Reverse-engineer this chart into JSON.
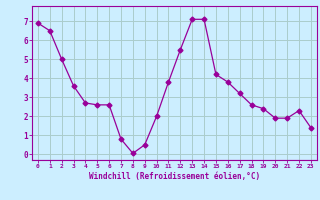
{
  "x": [
    0,
    1,
    2,
    3,
    4,
    5,
    6,
    7,
    8,
    9,
    10,
    11,
    12,
    13,
    14,
    15,
    16,
    17,
    18,
    19,
    20,
    21,
    22,
    23
  ],
  "y": [
    6.9,
    6.5,
    5.0,
    3.6,
    2.7,
    2.6,
    2.6,
    0.8,
    0.05,
    0.5,
    2.0,
    3.8,
    5.5,
    7.1,
    7.1,
    4.2,
    3.8,
    3.2,
    2.6,
    2.4,
    1.9,
    1.9,
    2.3,
    1.4
  ],
  "line_color": "#990099",
  "marker": "D",
  "marker_size": 2.5,
  "bg_color": "#cceeff",
  "grid_color": "#aacccc",
  "xlabel": "Windchill (Refroidissement éolien,°C)",
  "xlabel_color": "#990099",
  "tick_color": "#990099",
  "xlim": [
    -0.5,
    23.5
  ],
  "ylim": [
    -0.3,
    7.8
  ],
  "yticks": [
    0,
    1,
    2,
    3,
    4,
    5,
    6,
    7
  ],
  "xticks": [
    0,
    1,
    2,
    3,
    4,
    5,
    6,
    7,
    8,
    9,
    10,
    11,
    12,
    13,
    14,
    15,
    16,
    17,
    18,
    19,
    20,
    21,
    22,
    23
  ],
  "spine_color": "#990099"
}
